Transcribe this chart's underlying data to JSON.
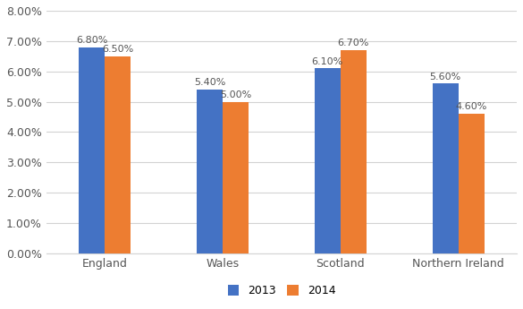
{
  "categories": [
    "England",
    "Wales",
    "Scotland",
    "Northern Ireland"
  ],
  "values_2013": [
    0.068,
    0.054,
    0.061,
    0.056
  ],
  "values_2014": [
    0.065,
    0.05,
    0.067,
    0.046
  ],
  "labels_2013": [
    "6.80%",
    "5.40%",
    "6.10%",
    "5.60%"
  ],
  "labels_2014": [
    "6.50%",
    "5.00%",
    "6.70%",
    "4.60%"
  ],
  "color_2013": "#4472C4",
  "color_2014": "#ED7D31",
  "legend_labels": [
    "2013",
    "2014"
  ],
  "ylim": [
    0.0,
    0.08
  ],
  "yticks": [
    0.0,
    0.01,
    0.02,
    0.03,
    0.04,
    0.05,
    0.06,
    0.07,
    0.08
  ],
  "ytick_labels": [
    "0.00%",
    "1.00%",
    "2.00%",
    "3.00%",
    "4.00%",
    "5.00%",
    "6.00%",
    "7.00%",
    "8.00%"
  ],
  "bar_width": 0.22,
  "bar_gap": 0.0,
  "label_fontsize": 8.0,
  "tick_fontsize": 9,
  "legend_fontsize": 9,
  "background_color": "#ffffff",
  "grid_color": "#d3d3d3"
}
